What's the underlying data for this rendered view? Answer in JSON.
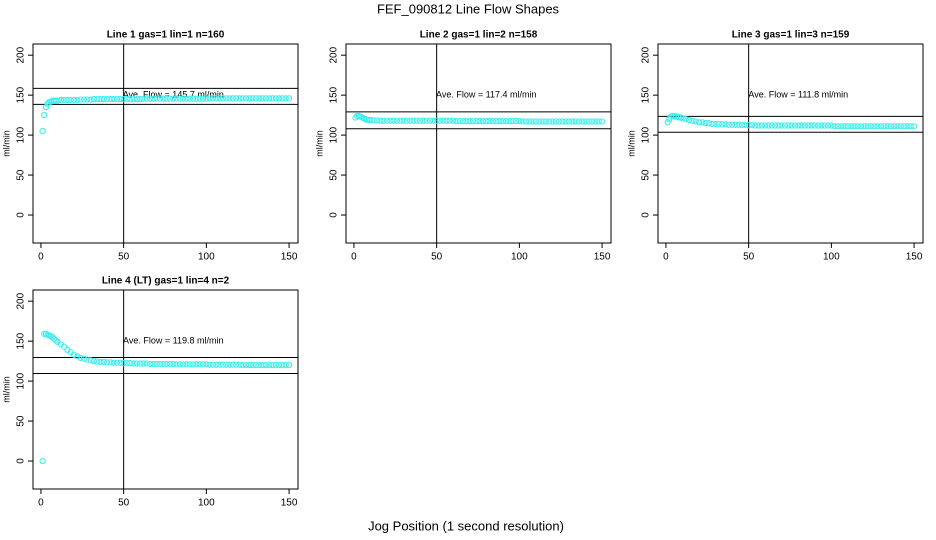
{
  "title": "FEF_090812  Line Flow Shapes",
  "xlabel": "Jog Position (1 second resolution)",
  "chart_data": [
    {
      "type": "scatter",
      "title": "Line 1 gas=1 lin=1 n=160",
      "ylabel": "ml/min",
      "annotation": "Ave. Flow =  145.7  ml/min",
      "color": "#33eeee",
      "xlim": [
        -4.8,
        155.4
      ],
      "ylim": [
        -35,
        214
      ],
      "xticks": [
        0,
        50,
        100,
        150
      ],
      "yticks": [
        0,
        50,
        100,
        150,
        200
      ],
      "hlines": [
        158.5,
        138.5
      ],
      "vline": 50,
      "x": [
        1,
        2,
        3,
        4,
        5,
        6,
        7,
        8,
        9,
        10,
        12,
        14,
        16,
        18,
        20,
        22,
        24,
        26,
        28,
        30,
        32,
        34,
        36,
        38,
        40,
        42,
        44,
        46,
        48,
        50,
        52,
        54,
        56,
        58,
        60,
        62,
        64,
        66,
        68,
        70,
        72,
        74,
        76,
        78,
        80,
        82,
        84,
        86,
        88,
        90,
        92,
        94,
        96,
        98,
        100,
        102,
        104,
        106,
        108,
        110,
        112,
        114,
        116,
        118,
        120,
        122,
        124,
        126,
        128,
        130,
        132,
        134,
        136,
        138,
        140,
        142,
        144,
        146,
        148,
        150
      ],
      "values": [
        105,
        125,
        135,
        139,
        141,
        142,
        143,
        143,
        143,
        143,
        144,
        144,
        144,
        144,
        144,
        144,
        144.5,
        144.5,
        144.5,
        144.5,
        145,
        145,
        145,
        145,
        145,
        145,
        145,
        145,
        145,
        145,
        145,
        145,
        145,
        145,
        145,
        145.5,
        145.5,
        145.5,
        145.5,
        145.5,
        145.5,
        145.5,
        145.5,
        145.5,
        145.5,
        145.5,
        145.5,
        145.5,
        145.5,
        145.5,
        145.5,
        145.5,
        145.5,
        145.5,
        145.5,
        146,
        146,
        146,
        146,
        146,
        146,
        146,
        146,
        146,
        146,
        146,
        146,
        146,
        146,
        146,
        146,
        146,
        146,
        146,
        146,
        146,
        146,
        146,
        146,
        146
      ]
    },
    {
      "type": "scatter",
      "title": "Line 2 gas=1 lin=2 n=158",
      "ylabel": "ml/min",
      "annotation": "Ave. Flow =  117.4  ml/min",
      "color": "#33eeee",
      "xlim": [
        -4.8,
        155.4
      ],
      "ylim": [
        -35,
        214
      ],
      "xticks": [
        0,
        50,
        100,
        150
      ],
      "yticks": [
        0,
        50,
        100,
        150,
        200
      ],
      "hlines": [
        129,
        108
      ],
      "vline": 50,
      "x": [
        1,
        2,
        3,
        4,
        5,
        6,
        7,
        8,
        9,
        10,
        12,
        14,
        16,
        18,
        20,
        22,
        24,
        26,
        28,
        30,
        32,
        34,
        36,
        38,
        40,
        42,
        44,
        46,
        48,
        50,
        52,
        54,
        56,
        58,
        60,
        62,
        64,
        66,
        68,
        70,
        72,
        74,
        76,
        78,
        80,
        82,
        84,
        86,
        88,
        90,
        92,
        94,
        96,
        98,
        100,
        102,
        104,
        106,
        108,
        110,
        112,
        114,
        116,
        118,
        120,
        122,
        124,
        126,
        128,
        130,
        132,
        134,
        136,
        138,
        140,
        142,
        144,
        146,
        148,
        150
      ],
      "values": [
        122,
        124,
        124,
        123,
        122,
        121,
        120,
        119,
        119,
        119,
        118.5,
        118.5,
        118,
        118,
        118,
        118,
        118,
        118,
        118,
        118,
        118,
        118,
        118,
        118,
        118,
        118,
        118,
        118,
        118,
        118,
        118,
        118,
        118,
        118,
        118,
        117.5,
        117.5,
        117.5,
        117.5,
        117.5,
        117.5,
        117.5,
        117.5,
        117.5,
        117.5,
        117.5,
        117.5,
        117.5,
        117.5,
        117.5,
        117.5,
        117.5,
        117.5,
        117.5,
        117.5,
        117,
        117,
        117,
        117,
        117,
        117,
        117,
        117,
        117,
        117,
        117,
        117,
        117,
        117,
        117,
        117,
        117,
        117,
        117,
        117,
        117,
        117,
        117,
        117,
        117
      ]
    },
    {
      "type": "scatter",
      "title": "Line 3 gas=1 lin=3 n=159",
      "ylabel": "ml/min",
      "annotation": "Ave. Flow =  111.8  ml/min",
      "color": "#33eeee",
      "xlim": [
        -4.8,
        155.4
      ],
      "ylim": [
        -35,
        214
      ],
      "xticks": [
        0,
        50,
        100,
        150
      ],
      "yticks": [
        0,
        50,
        100,
        150,
        200
      ],
      "hlines": [
        123.5,
        103.5
      ],
      "vline": 50,
      "x": [
        1,
        2,
        3,
        4,
        5,
        6,
        7,
        8,
        9,
        10,
        12,
        14,
        16,
        18,
        20,
        22,
        24,
        26,
        28,
        30,
        32,
        34,
        36,
        38,
        40,
        42,
        44,
        46,
        48,
        50,
        52,
        54,
        56,
        58,
        60,
        62,
        64,
        66,
        68,
        70,
        72,
        74,
        76,
        78,
        80,
        82,
        84,
        86,
        88,
        90,
        92,
        94,
        96,
        98,
        100,
        102,
        104,
        106,
        108,
        110,
        112,
        114,
        116,
        118,
        120,
        122,
        124,
        126,
        128,
        130,
        132,
        134,
        136,
        138,
        140,
        142,
        144,
        146,
        148,
        150
      ],
      "values": [
        116,
        120,
        123,
        124,
        124,
        123,
        123,
        122,
        122,
        121,
        120,
        119,
        118,
        117,
        116,
        116,
        115,
        115,
        114,
        114,
        114,
        113.5,
        113.5,
        113,
        113,
        113,
        113,
        112.5,
        112.5,
        112.5,
        112.5,
        112,
        112,
        112,
        112,
        112,
        112,
        112,
        112,
        112,
        112,
        112,
        112,
        112,
        112,
        112,
        112,
        112,
        112,
        112,
        112,
        112,
        112,
        112,
        112,
        111,
        111,
        111,
        111,
        111,
        111,
        111,
        111,
        111,
        111,
        111,
        111,
        111,
        111,
        111,
        111,
        111,
        111,
        111,
        111,
        111,
        111,
        111,
        111,
        111
      ]
    },
    {
      "type": "scatter",
      "title": "Line 4 (LT) gas=1 lin=4 n=2",
      "ylabel": "ml/min",
      "annotation": "Ave. Flow =  119.8  ml/min",
      "color": "#33eeee",
      "xlim": [
        -4.8,
        155.4
      ],
      "ylim": [
        -35,
        214
      ],
      "xticks": [
        0,
        50,
        100,
        150
      ],
      "yticks": [
        0,
        50,
        100,
        150,
        200
      ],
      "hlines": [
        129.5,
        109.5
      ],
      "vline": 50,
      "x": [
        1,
        2,
        3,
        4,
        5,
        6,
        7,
        8,
        9,
        10,
        12,
        14,
        16,
        18,
        20,
        22,
        24,
        26,
        28,
        30,
        32,
        34,
        36,
        38,
        40,
        42,
        44,
        46,
        48,
        50,
        52,
        54,
        56,
        58,
        60,
        62,
        64,
        66,
        68,
        70,
        72,
        74,
        76,
        78,
        80,
        82,
        84,
        86,
        88,
        90,
        92,
        94,
        96,
        98,
        100,
        102,
        104,
        106,
        108,
        110,
        112,
        114,
        116,
        118,
        120,
        122,
        124,
        126,
        128,
        130,
        132,
        134,
        136,
        138,
        140,
        142,
        144,
        146,
        148,
        150
      ],
      "values": [
        0,
        159,
        159,
        158,
        157,
        156,
        155,
        153,
        151,
        149,
        146,
        143,
        139,
        136,
        133,
        131,
        129,
        128,
        127,
        126,
        125,
        124.5,
        124,
        124,
        123.5,
        123.5,
        123,
        123,
        123,
        122.5,
        122.5,
        122.5,
        122,
        122,
        122,
        122,
        122,
        121.5,
        121.5,
        121.5,
        121.5,
        121.5,
        121.5,
        121.5,
        121.5,
        121,
        121,
        121,
        121,
        121,
        121,
        121,
        121,
        121,
        121,
        120.5,
        120.5,
        120.5,
        120.5,
        120.5,
        120.5,
        120.5,
        120.5,
        120.5,
        120.5,
        120,
        120,
        120,
        120,
        120,
        120,
        120,
        120,
        120,
        120,
        120,
        120,
        120,
        120,
        120
      ]
    }
  ]
}
